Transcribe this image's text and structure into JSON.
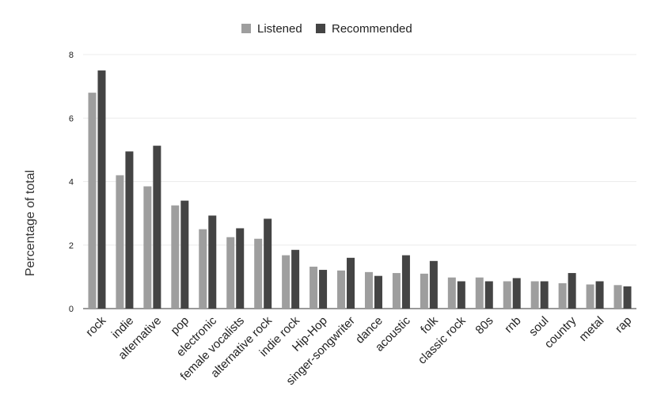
{
  "chart_data": {
    "type": "bar",
    "title": "",
    "xlabel": "",
    "ylabel": "Percentage of total",
    "ylim": [
      0,
      8
    ],
    "yticks": [
      0,
      2,
      4,
      6,
      8
    ],
    "grid": true,
    "legend_position": "top-center",
    "categories": [
      "rock",
      "indie",
      "alternative",
      "pop",
      "electronic",
      "female vocalists",
      "alternative rock",
      "indie rock",
      "Hip-Hop",
      "singer-songwriter",
      "dance",
      "acoustic",
      "folk",
      "classic rock",
      "80s",
      "rnb",
      "soul",
      "country",
      "metal",
      "rap"
    ],
    "series": [
      {
        "name": "Listened",
        "color": "#9e9e9e",
        "values": [
          6.8,
          4.2,
          3.85,
          3.25,
          2.5,
          2.25,
          2.2,
          1.68,
          1.32,
          1.2,
          1.15,
          1.12,
          1.1,
          0.98,
          0.98,
          0.86,
          0.86,
          0.8,
          0.76,
          0.74
        ]
      },
      {
        "name": "Recommended",
        "color": "#444444",
        "values": [
          7.5,
          4.95,
          5.13,
          3.4,
          2.93,
          2.53,
          2.83,
          1.85,
          1.22,
          1.6,
          1.03,
          1.68,
          1.5,
          0.86,
          0.86,
          0.96,
          0.86,
          1.12,
          0.86,
          0.7
        ]
      }
    ]
  }
}
